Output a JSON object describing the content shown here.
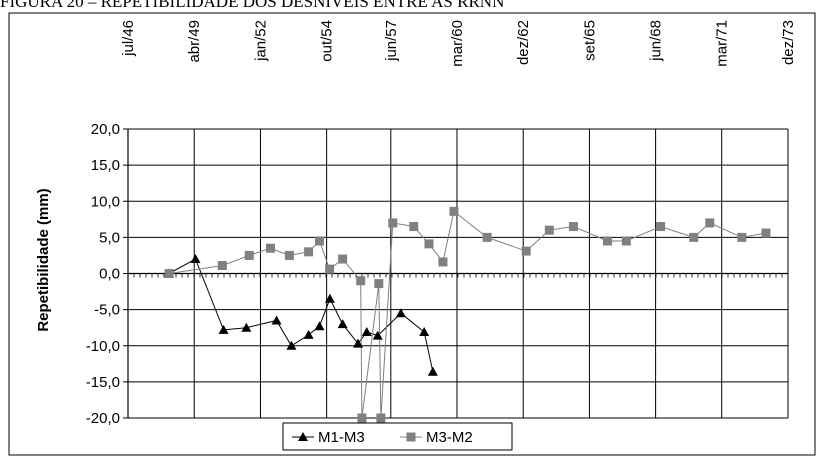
{
  "caption": "FIGURA 20 – REPETIBILIDADE DOS DESNÍVEIS ENTRE AS RRNN",
  "chart_data": {
    "type": "line",
    "title": "",
    "xlabel": "",
    "ylabel": "Repetibilidade (mm)",
    "x_tick_labels": [
      "jul/46",
      "abr/49",
      "jan/52",
      "out/54",
      "jun/57",
      "mar/60",
      "dez/62",
      "set/65",
      "jun/68",
      "mar/71",
      "dez/73"
    ],
    "x_ticks": [
      "1946-07-01",
      "1949-04-01",
      "1952-01-01",
      "1954-10-01",
      "1957-06-01",
      "1960-03-01",
      "1962-12-01",
      "1965-09-01",
      "1968-06-01",
      "1971-03-01",
      "1973-12-01"
    ],
    "xlim": [
      "1946-07-01",
      "1973-12-01"
    ],
    "ylim": [
      -20,
      20
    ],
    "y_ticks": [
      20,
      15,
      10,
      5,
      0,
      -5,
      -10,
      -15,
      -20
    ],
    "y_tick_labels": [
      "20,0",
      "15,0",
      "10,0",
      "5,0",
      "0,0",
      "-5,0",
      "-10,0",
      "-15,0",
      "-20,0"
    ],
    "grid": true,
    "legend": "bottom-center",
    "series": [
      {
        "name": "M1-M3",
        "color": "#000000",
        "marker": "triangle",
        "points": [
          [
            "1948-03-15",
            0.0
          ],
          [
            "1949-04-20",
            2.0
          ],
          [
            "1950-06-20",
            -7.8
          ],
          [
            "1951-06-01",
            -7.5
          ],
          [
            "1952-09-01",
            -6.5
          ],
          [
            "1953-04-15",
            -10.0
          ],
          [
            "1954-01-01",
            -8.5
          ],
          [
            "1954-06-15",
            -7.3
          ],
          [
            "1954-11-20",
            -3.5
          ],
          [
            "1955-06-01",
            -7.0
          ],
          [
            "1956-01-20",
            -9.7
          ],
          [
            "1956-06-01",
            -8.1
          ],
          [
            "1956-11-15",
            -8.6
          ],
          [
            "1957-11-01",
            -5.5
          ],
          [
            "1958-10-20",
            -8.1
          ],
          [
            "1959-03-01",
            -13.6
          ]
        ]
      },
      {
        "name": "M3-M2",
        "color": "#808080",
        "marker": "square",
        "points": [
          [
            "1948-03-15",
            0.0
          ],
          [
            "1950-06-01",
            1.1
          ],
          [
            "1951-07-15",
            2.5
          ],
          [
            "1952-06-01",
            3.5
          ],
          [
            "1953-03-15",
            2.5
          ],
          [
            "1954-01-01",
            3.0
          ],
          [
            "1954-06-15",
            4.5
          ],
          [
            "1954-11-15",
            0.6
          ],
          [
            "1955-06-01",
            2.0
          ],
          [
            "1956-03-01",
            -1.0
          ],
          [
            "1956-03-20",
            -20.0
          ],
          [
            "1956-12-01",
            -1.4
          ],
          [
            "1957-01-01",
            -20.0
          ],
          [
            "1957-07-01",
            7.0
          ],
          [
            "1958-05-15",
            6.5
          ],
          [
            "1959-01-01",
            4.1
          ],
          [
            "1959-08-01",
            1.6
          ],
          [
            "1960-01-15",
            8.6
          ],
          [
            "1961-06-01",
            5.0
          ],
          [
            "1963-01-15",
            3.1
          ],
          [
            "1964-01-01",
            6.0
          ],
          [
            "1965-01-01",
            6.5
          ],
          [
            "1966-06-01",
            4.5
          ],
          [
            "1967-03-15",
            4.5
          ],
          [
            "1968-08-15",
            6.5
          ],
          [
            "1970-01-01",
            5.0
          ],
          [
            "1970-09-01",
            7.0
          ],
          [
            "1972-01-01",
            5.0
          ],
          [
            "1973-01-01",
            5.6
          ]
        ]
      }
    ]
  }
}
